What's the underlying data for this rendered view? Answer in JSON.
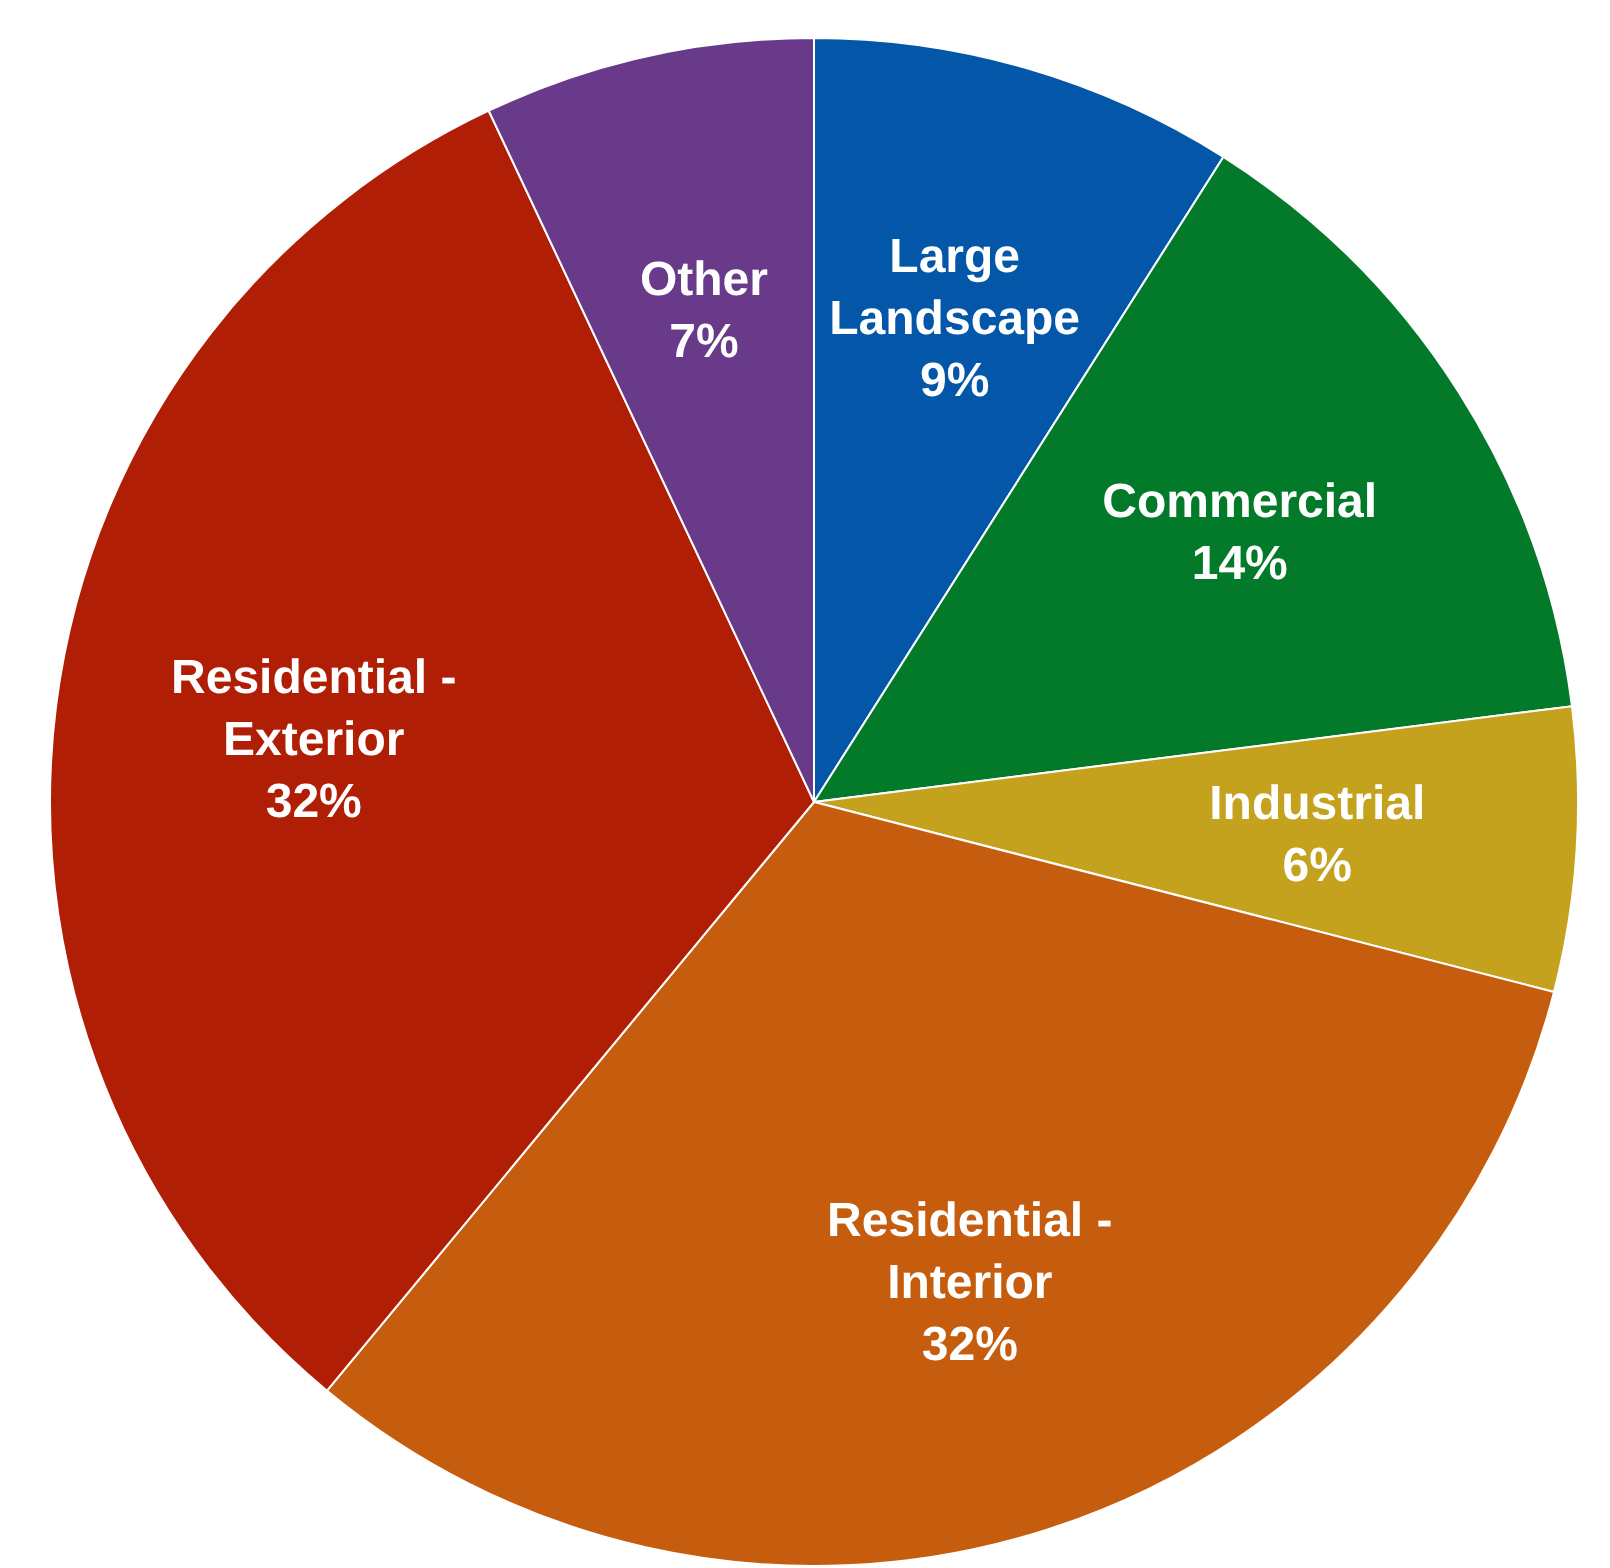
{
  "chart_data": {
    "type": "pie",
    "categories": [
      "Large Landscape",
      "Commercial",
      "Industrial",
      "Residential - Interior",
      "Residential - Exterior",
      "Other"
    ],
    "values": [
      9,
      14,
      6,
      32,
      32,
      7
    ],
    "value_labels": [
      "9%",
      "14%",
      "6%",
      "32%",
      "32%",
      "7%"
    ],
    "colors": [
      "#0457a8",
      "#037a2a",
      "#c4a21e",
      "#c55c0e",
      "#b01e05",
      "#6a3a8a"
    ],
    "legend": false
  }
}
